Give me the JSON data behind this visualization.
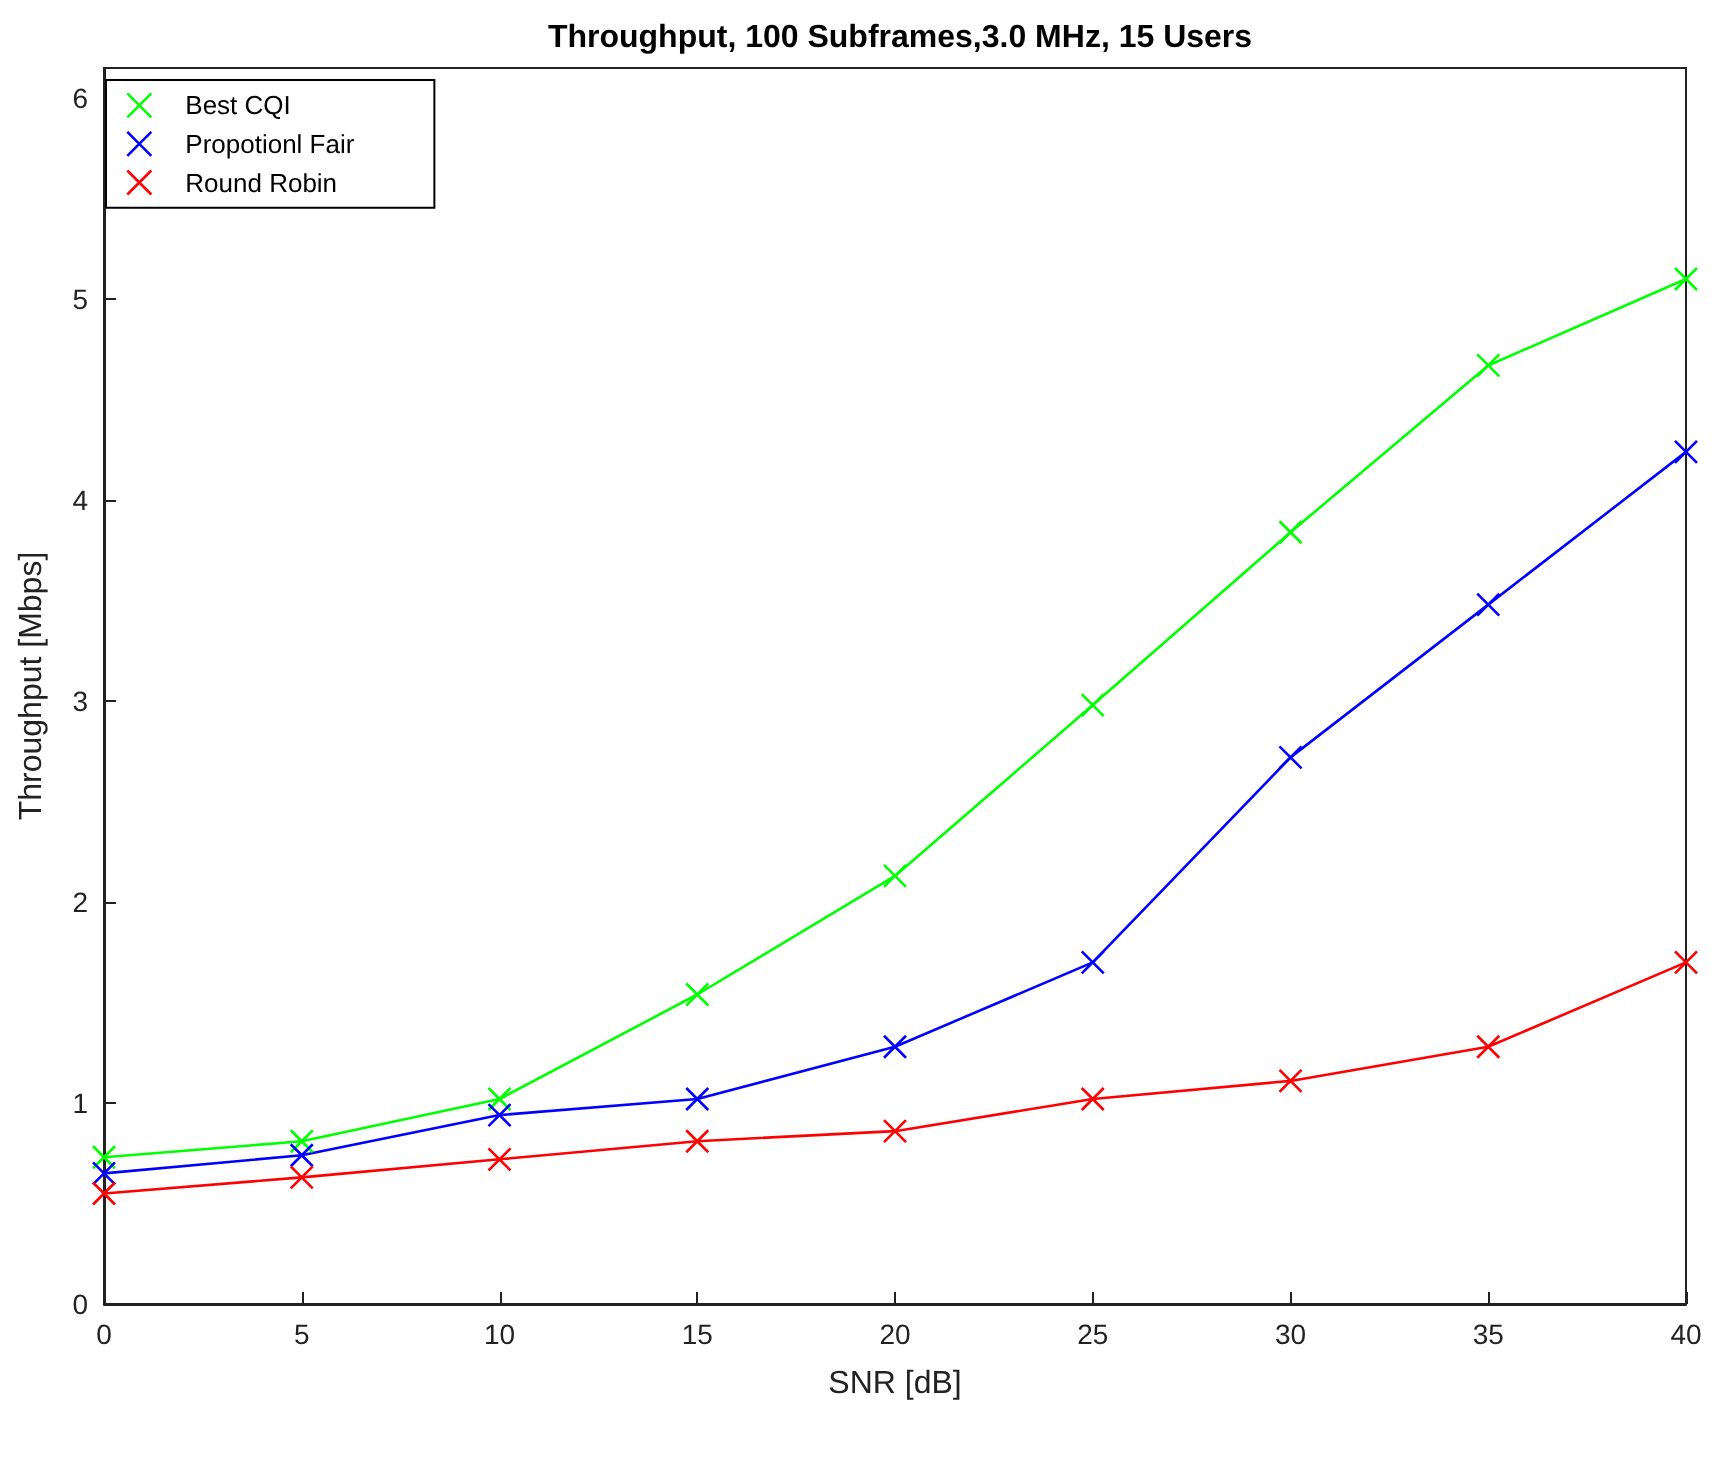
{
  "chart_data": {
    "type": "line",
    "title": "Throughput, 100 Subframes,3.0 MHz, 15 Users",
    "xlabel": "SNR [dB]",
    "ylabel": "Throughput [Mbps]",
    "x": [
      0,
      5,
      10,
      15,
      20,
      25,
      30,
      35,
      40
    ],
    "series": [
      {
        "name": "Best CQI",
        "color": "#00ff00",
        "values": [
          0.73,
          0.81,
          1.02,
          1.54,
          2.13,
          2.98,
          3.84,
          4.67,
          5.1
        ]
      },
      {
        "name": "Propotionl Fair",
        "color": "#0000ff",
        "values": [
          0.65,
          0.74,
          0.94,
          1.02,
          1.28,
          1.7,
          2.72,
          3.48,
          4.24
        ]
      },
      {
        "name": "Round Robin",
        "color": "#ff0000",
        "values": [
          0.55,
          0.63,
          0.72,
          0.81,
          0.86,
          1.02,
          1.11,
          1.28,
          1.7
        ]
      }
    ],
    "xlim": [
      0,
      40
    ],
    "xticks": [
      0,
      5,
      10,
      15,
      20,
      25,
      30,
      35,
      40
    ],
    "ylim": [
      0,
      6.15
    ],
    "yticks": [
      0,
      1,
      2,
      3,
      4,
      5,
      6
    ],
    "grid": false,
    "legend": "top left",
    "marker": "cross",
    "line_style": "solid"
  }
}
